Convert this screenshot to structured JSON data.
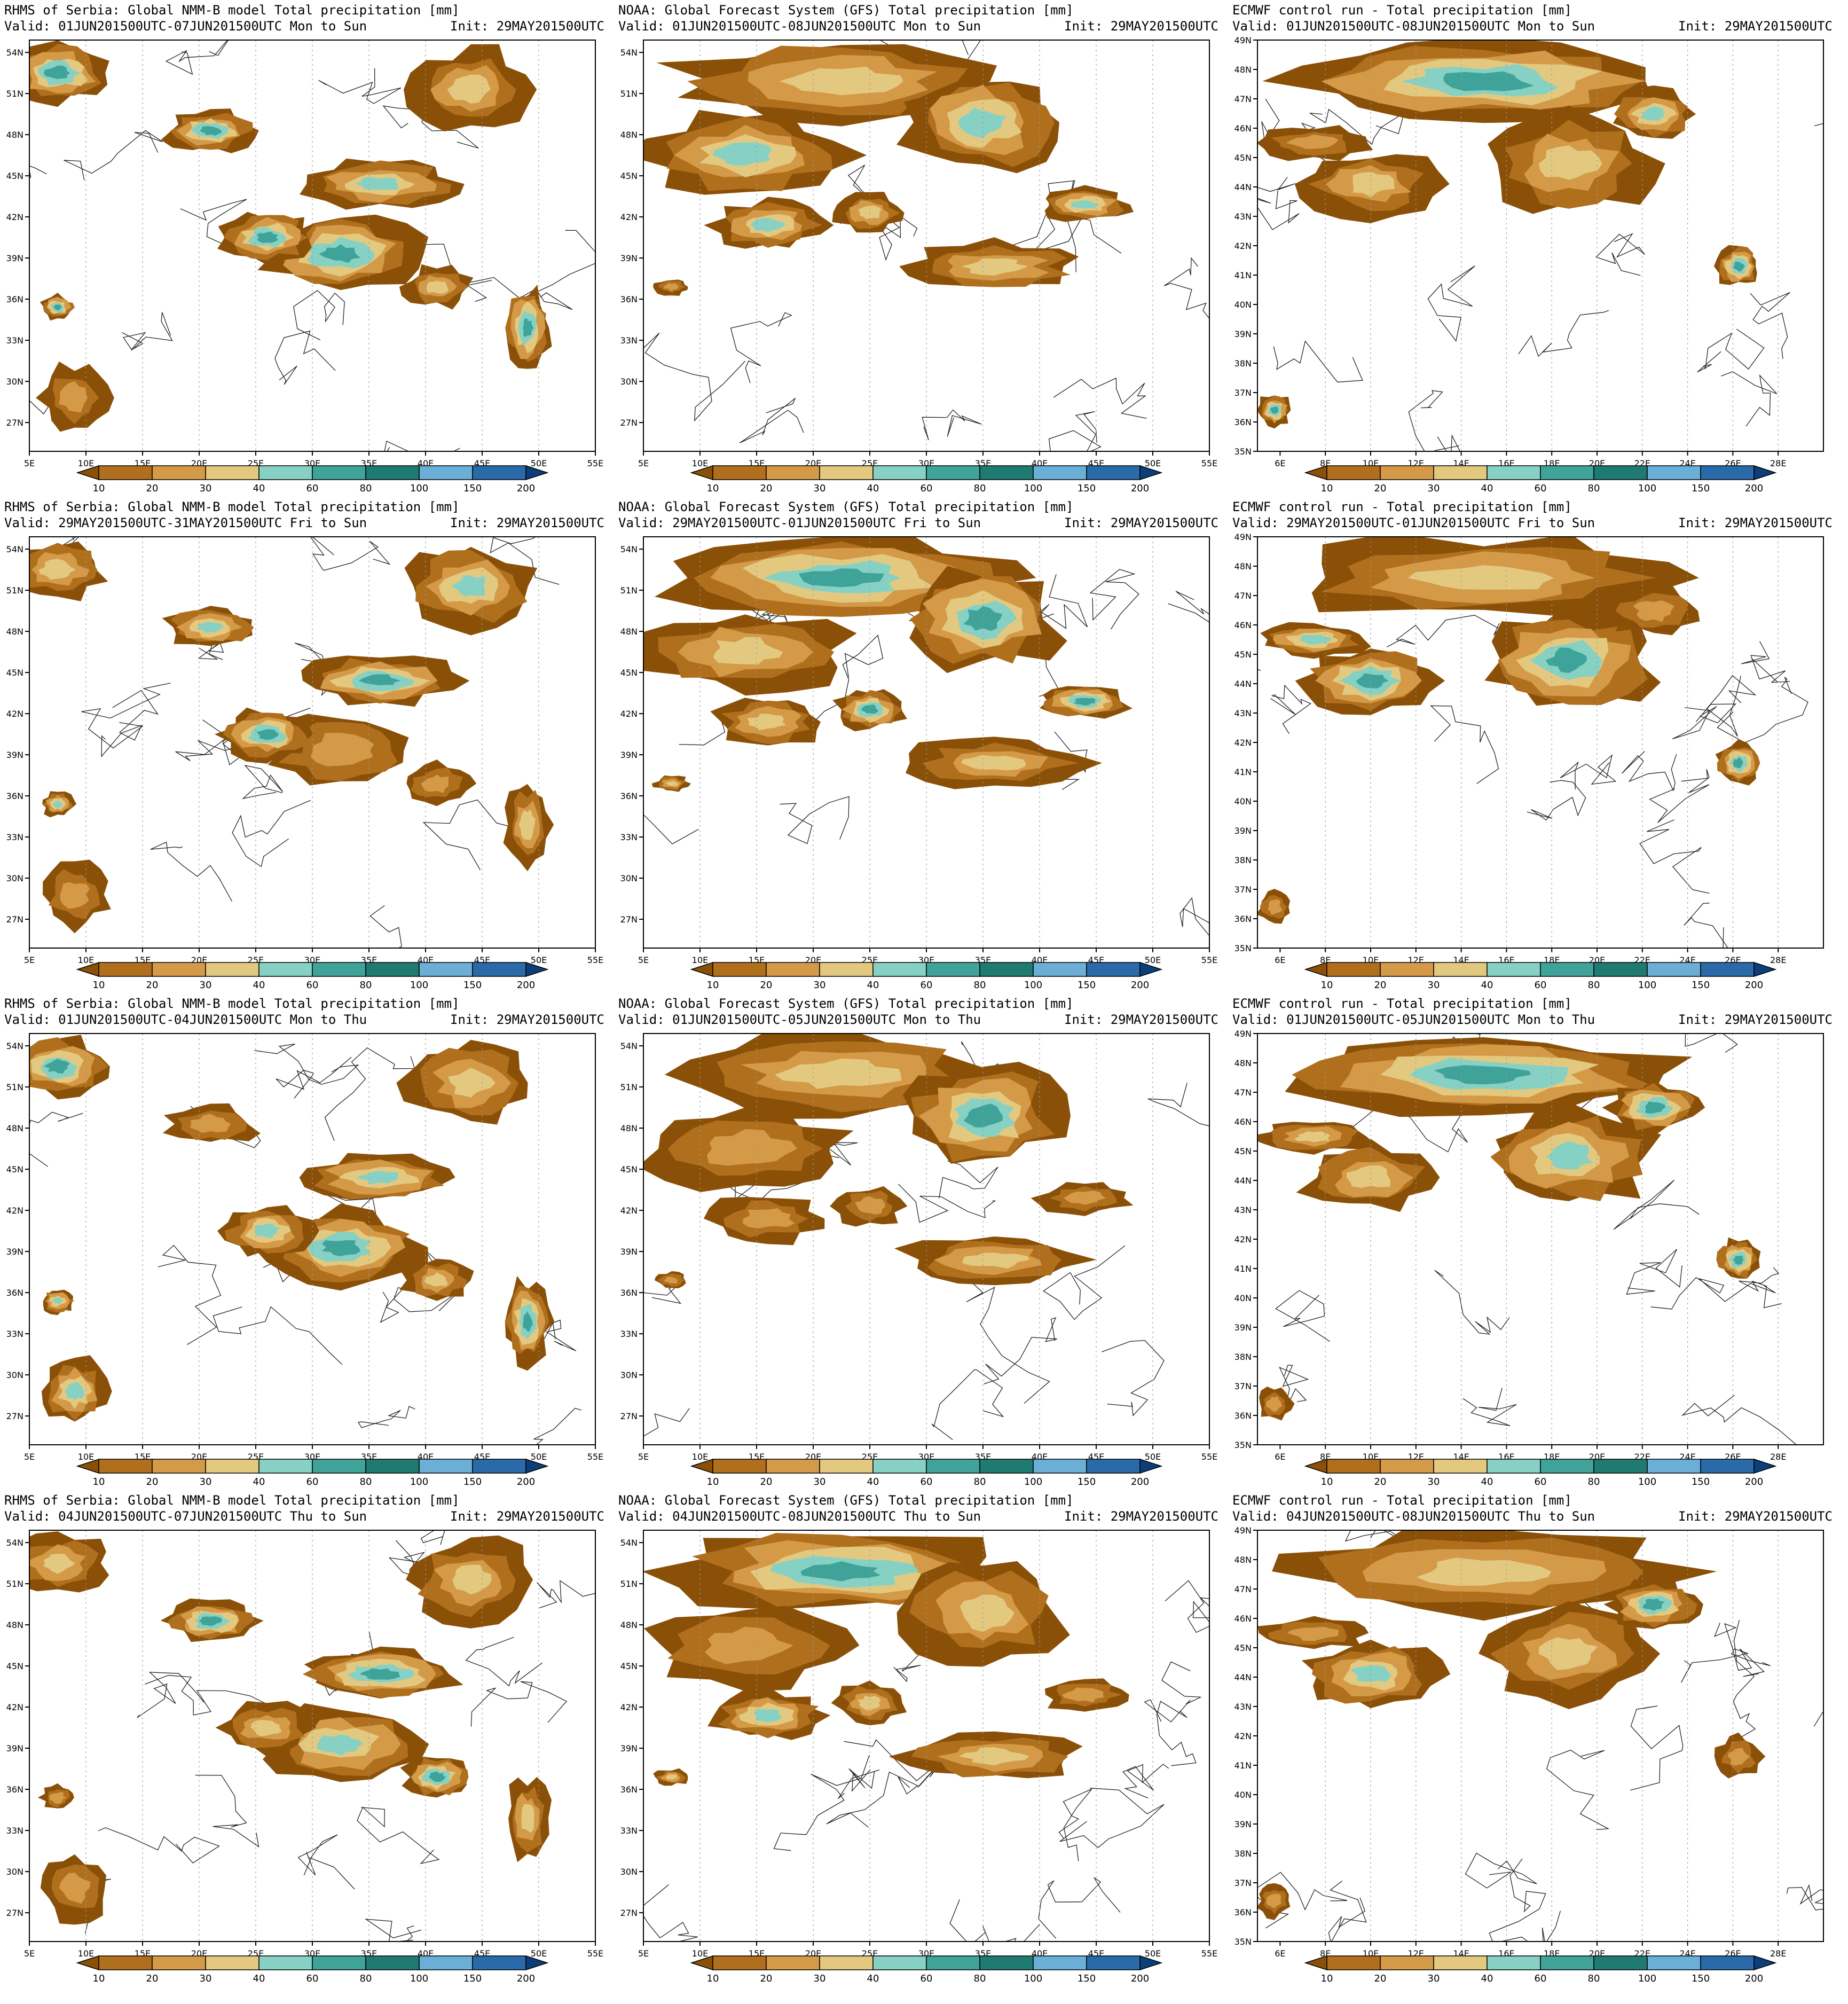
{
  "colorbar": {
    "levels": [
      "10",
      "20",
      "30",
      "40",
      "60",
      "80",
      "100",
      "150",
      "200"
    ],
    "colors": [
      "#8a5008",
      "#b06f1c",
      "#d49a48",
      "#e3c980",
      "#86d1c4",
      "#3fa399",
      "#1f7a72",
      "#6baed6",
      "#2b6aa8",
      "#0c3f7a"
    ]
  },
  "land_color": "#ffffff",
  "wide_axes": {
    "x_ticks": [
      "5E",
      "10E",
      "15E",
      "20E",
      "25E",
      "30E",
      "35E",
      "40E",
      "45E",
      "50E",
      "55E"
    ],
    "y_ticks": [
      "54N",
      "51N",
      "48N",
      "45N",
      "42N",
      "39N",
      "36N",
      "33N",
      "30N",
      "27N"
    ]
  },
  "ecmwf_axes": {
    "x_ticks": [
      "6E",
      "8E",
      "10E",
      "12E",
      "14E",
      "16E",
      "18E",
      "20E",
      "22E",
      "24E",
      "26E",
      "28E"
    ],
    "y_ticks": [
      "49N",
      "48N",
      "47N",
      "46N",
      "45N",
      "44N",
      "43N",
      "42N",
      "41N",
      "40N",
      "39N",
      "38N",
      "37N",
      "36N",
      "35N"
    ]
  },
  "rows": [
    {
      "nmmb": {
        "title": "RHMS of Serbia: Global NMM-B model Total precipitation [mm]",
        "valid": "Valid: 01JUN201500UTC-07JUN201500UTC Mon to Sun",
        "init": "Init: 29MAY201500UTC"
      },
      "gfs": {
        "title": "NOAA: Global Forecast System (GFS) Total precipitation [mm]",
        "valid": "Valid: 01JUN201500UTC-08JUN201500UTC Mon to Sun",
        "init": "Init: 29MAY201500UTC"
      },
      "ecmwf": {
        "title": "ECMWF control run - Total precipitation [mm]",
        "valid": "Valid: 01JUN201500UTC-08JUN201500UTC Mon to Sun",
        "init": "Init: 29MAY201500UTC"
      }
    },
    {
      "nmmb": {
        "title": "RHMS of Serbia: Global NMM-B model Total precipitation [mm]",
        "valid": "Valid: 29MAY201500UTC-31MAY201500UTC Fri to Sun",
        "init": "Init: 29MAY201500UTC"
      },
      "gfs": {
        "title": "NOAA: Global Forecast System (GFS) Total precipitation [mm]",
        "valid": "Valid: 29MAY201500UTC-01JUN201500UTC Fri to Sun",
        "init": "Init: 29MAY201500UTC"
      },
      "ecmwf": {
        "title": "ECMWF control run - Total precipitation [mm]",
        "valid": "Valid: 29MAY201500UTC-01JUN201500UTC Fri to Sun",
        "init": "Init: 29MAY201500UTC"
      }
    },
    {
      "nmmb": {
        "title": "RHMS of Serbia: Global NMM-B model Total precipitation [mm]",
        "valid": "Valid: 01JUN201500UTC-04JUN201500UTC Mon to Thu",
        "init": "Init: 29MAY201500UTC"
      },
      "gfs": {
        "title": "NOAA: Global Forecast System (GFS) Total precipitation [mm]",
        "valid": "Valid: 01JUN201500UTC-05JUN201500UTC Mon to Thu",
        "init": "Init: 29MAY201500UTC"
      },
      "ecmwf": {
        "title": "ECMWF control run - Total precipitation [mm]",
        "valid": "Valid: 01JUN201500UTC-05JUN201500UTC Mon to Thu",
        "init": "Init: 29MAY201500UTC"
      }
    },
    {
      "nmmb": {
        "title": "RHMS of Serbia: Global NMM-B model Total precipitation [mm]",
        "valid": "Valid: 04JUN201500UTC-07JUN201500UTC Thu to Sun",
        "init": "Init: 29MAY201500UTC"
      },
      "gfs": {
        "title": "NOAA: Global Forecast System (GFS) Total precipitation [mm]",
        "valid": "Valid: 04JUN201500UTC-08JUN201500UTC Thu to Sun",
        "init": "Init: 29MAY201500UTC"
      },
      "ecmwf": {
        "title": "ECMWF control run - Total precipitation [mm]",
        "valid": "Valid: 04JUN201500UTC-08JUN201500UTC Thu to Sun",
        "init": "Init: 29MAY201500UTC"
      }
    }
  ]
}
